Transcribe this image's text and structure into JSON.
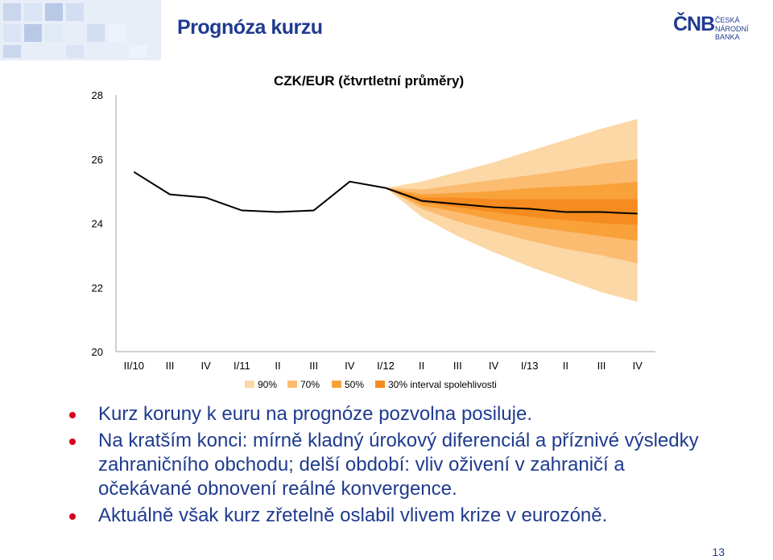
{
  "header": {
    "title": "Prognóza kurzu",
    "logo": {
      "mark": "ČNB",
      "line1": "ČESKÁ",
      "line2": "NÁRODNÍ BANKA"
    }
  },
  "chart_data": {
    "type": "fan",
    "title": "CZK/EUR (čtvrtletní průměry)",
    "categories": [
      "II/10",
      "III",
      "IV",
      "I/11",
      "II",
      "III",
      "IV",
      "I/12",
      "II",
      "III",
      "IV",
      "I/13",
      "II",
      "III",
      "IV"
    ],
    "y_ticks": [
      "20",
      "22",
      "24",
      "26",
      "28"
    ],
    "ylim": [
      20,
      28
    ],
    "series": [
      {
        "values": [
          25.6,
          24.9,
          24.8,
          24.4,
          24.35,
          24.4,
          25.3,
          25.1,
          24.7,
          24.6,
          24.5,
          24.45,
          24.35,
          24.35,
          24.3
        ]
      }
    ],
    "fan": {
      "start_index": 7,
      "bands": [
        {
          "level": "90%",
          "color": "#fcd8a6",
          "upper": [
            25.1,
            25.3,
            25.6,
            25.9,
            26.25,
            26.6,
            26.95,
            27.25
          ],
          "lower": [
            25.1,
            24.2,
            23.6,
            23.1,
            22.65,
            22.25,
            21.85,
            21.55
          ]
        },
        {
          "level": "70%",
          "color": "#fbbc72",
          "upper": [
            25.1,
            25.05,
            25.2,
            25.35,
            25.5,
            25.65,
            25.85,
            26.0
          ],
          "lower": [
            25.1,
            24.45,
            24.05,
            23.75,
            23.45,
            23.2,
            23.0,
            22.75
          ]
        },
        {
          "level": "50%",
          "color": "#f9a23a",
          "upper": [
            25.1,
            24.9,
            24.95,
            25.0,
            25.1,
            25.15,
            25.2,
            25.3
          ],
          "lower": [
            25.1,
            24.55,
            24.35,
            24.1,
            23.9,
            23.75,
            23.6,
            23.45
          ]
        },
        {
          "level": "30%",
          "color": "#f68b1f",
          "upper": [
            25.1,
            24.8,
            24.8,
            24.75,
            24.75,
            24.75,
            24.75,
            24.75
          ],
          "lower": [
            25.1,
            24.65,
            24.5,
            24.35,
            24.2,
            24.1,
            24.0,
            23.95
          ]
        }
      ]
    },
    "legend": {
      "items": [
        "90%",
        "70%",
        "50%",
        "30% interval spolehlivosti"
      ],
      "placement": "bottom"
    },
    "grid": false
  },
  "bullets": [
    "Kurz koruny k euru na prognóze pozvolna posiluje.",
    "Na kratším konci: mírně kladný úrokový diferenciál a příznivé výsledky zahraničního obchodu; delší období: vliv oživení v zahraničí a očekávané obnovení reálné konvergence.",
    "Aktuálně však kurz zřetelně oslabil vlivem krize v eurozóně."
  ],
  "page_number": "13"
}
